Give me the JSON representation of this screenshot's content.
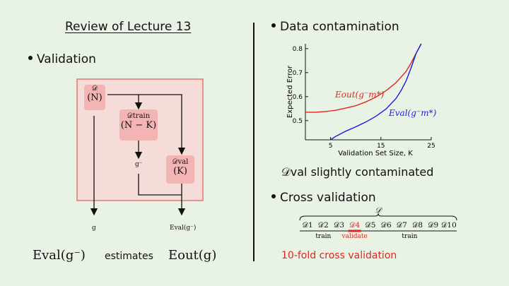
{
  "left": {
    "title": "Review of Lecture 13",
    "bullet_validation": "Validation",
    "diagram": {
      "node_D": {
        "top": "𝒟",
        "bottom": "(N)"
      },
      "node_train": {
        "top": "𝒟train",
        "bottom": "(N − K)"
      },
      "node_val": {
        "top": "𝒟val",
        "bottom": "(K)"
      },
      "g_minus": "g⁻",
      "g": "g",
      "eval_small": "Eval(g⁻)"
    },
    "footer": {
      "lhs": "Eval(g⁻)",
      "middle": "estimates",
      "rhs": "Eout(g)"
    }
  },
  "right": {
    "bullet_contamination": "Data contamination",
    "bullet_cv": "Cross validation",
    "contaminated_note": "𝒟val slightly contaminated",
    "cv": {
      "top_label": "𝒟",
      "subsets": [
        "𝒟1",
        "𝒟2",
        "𝒟3",
        "𝒟4",
        "𝒟5",
        "𝒟6",
        "𝒟7",
        "𝒟8",
        "𝒟9",
        "𝒟10"
      ],
      "label_train_left": "train",
      "label_validate": "validate",
      "label_train_right": "train",
      "caption": "10-fold cross validation"
    }
  },
  "chart_data": {
    "type": "line",
    "xlabel": "Validation Set Size, K",
    "ylabel": "Expected Error",
    "xlim": [
      0,
      25
    ],
    "ylim": [
      0.42,
      0.82
    ],
    "xticks": [
      "5",
      "15",
      "25"
    ],
    "yticks": [
      "0.5",
      "0.6",
      "0.7",
      "0.8"
    ],
    "grid": false,
    "series": [
      {
        "name": "Eout(g⁻m*)",
        "color": "#e0261e",
        "x": [
          0,
          2,
          4,
          6,
          8,
          10,
          12,
          14,
          16,
          18,
          20,
          21,
          22,
          23
        ],
        "y": [
          0.535,
          0.535,
          0.538,
          0.543,
          0.552,
          0.562,
          0.578,
          0.598,
          0.624,
          0.658,
          0.705,
          0.74,
          0.78,
          0.82
        ]
      },
      {
        "name": "Eval(g⁻m*)",
        "color": "#1a1adc",
        "x": [
          5,
          6,
          8,
          10,
          12,
          14,
          16,
          18,
          19,
          20,
          21,
          22,
          23
        ],
        "y": [
          0.42,
          0.434,
          0.456,
          0.474,
          0.494,
          0.518,
          0.548,
          0.592,
          0.625,
          0.665,
          0.72,
          0.78,
          0.82
        ]
      }
    ]
  }
}
